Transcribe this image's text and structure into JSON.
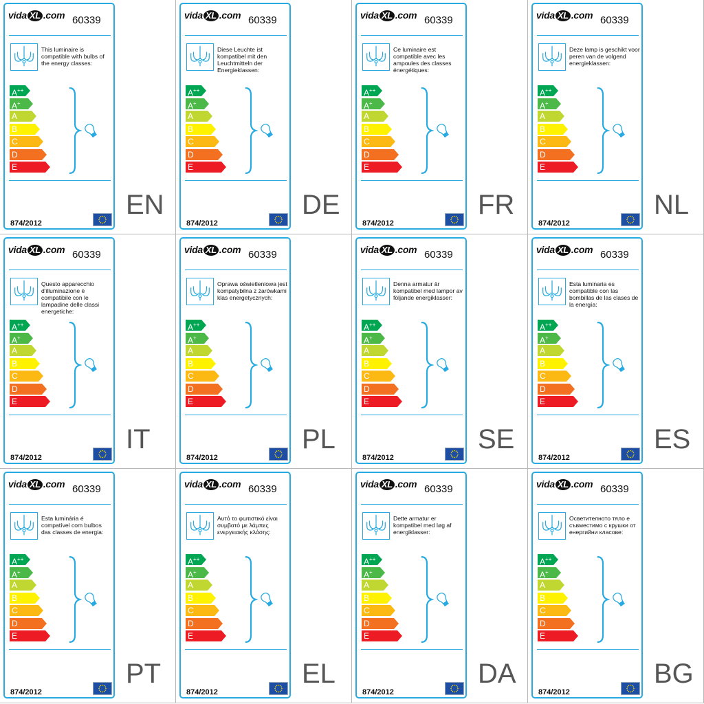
{
  "brand": "vidaXL.com",
  "model": "60339",
  "regulation": "874/2012",
  "energy_classes": [
    {
      "letter": "A",
      "sup": "++",
      "color": "#00a651"
    },
    {
      "letter": "A",
      "sup": "+",
      "color": "#4cb848"
    },
    {
      "letter": "A",
      "sup": "",
      "color": "#bfd730"
    },
    {
      "letter": "B",
      "sup": "",
      "color": "#fff200"
    },
    {
      "letter": "C",
      "sup": "",
      "color": "#fdb913"
    },
    {
      "letter": "D",
      "sup": "",
      "color": "#f37021"
    },
    {
      "letter": "E",
      "sup": "",
      "color": "#ed1c24"
    }
  ],
  "accent_color": "#27aae1",
  "icons": [
    "chandelier-icon",
    "bracket-icon",
    "bulb-icon",
    "eu-flag-icon"
  ],
  "labels": [
    {
      "lang": "EN",
      "text": "This luminaire is compatible with bulbs of the energy classes:"
    },
    {
      "lang": "DE",
      "text": "Diese Leuchte ist kompatibel mit den Leuchtmitteln der Energieklassen:"
    },
    {
      "lang": "FR",
      "text": "Ce luminaire est compatible avec les ampoules des classes énergétiques:"
    },
    {
      "lang": "NL",
      "text": "Deze lamp is geschikt voor peren van de volgend energieklassen:"
    },
    {
      "lang": "IT",
      "text": "Questo apparecchio d'illuminazione è compatibile con le lampadine delle classi energetiche:"
    },
    {
      "lang": "PL",
      "text": "Oprawa oświetleniowa jest kompatybilna z żarówkami klas energetycznych:"
    },
    {
      "lang": "SE",
      "text": "Denna armatur är kompatibel med lampor av följande energiklasser:"
    },
    {
      "lang": "ES",
      "text": "Esta luminaria es compatible con las bombillas de las clases de la energía:"
    },
    {
      "lang": "PT",
      "text": "Esta luminária é compatível com bulbos das classes de energia:"
    },
    {
      "lang": "EL",
      "text": "Αυτό το φωτιστικό είναι συμβατό με λάμπες ενεργειακής κλάσης:"
    },
    {
      "lang": "DA",
      "text": "Dette armatur er kompatibel med løg af energiklasser:"
    },
    {
      "lang": "BG",
      "text": "Осветителното тяло е съвместимо с крушки от енергийни класове:"
    }
  ]
}
